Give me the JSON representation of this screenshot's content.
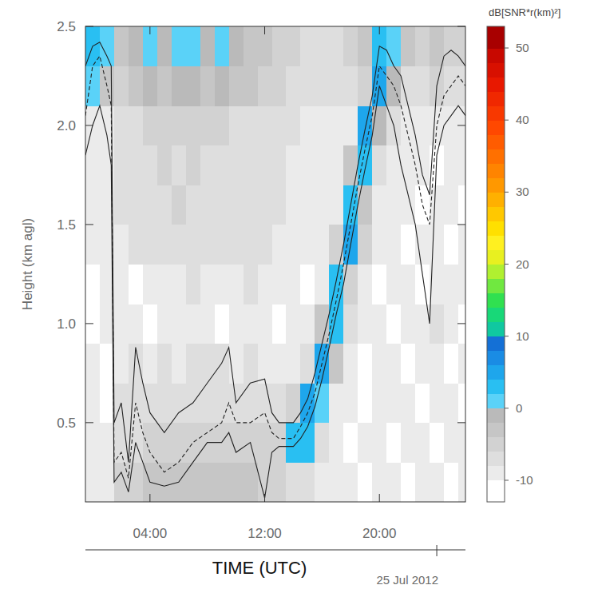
{
  "chart_data": {
    "type": "heatmap",
    "x_label": "TIME (UTC)",
    "y_label": "Height (km agl)",
    "xlim": [
      -0.5,
      26
    ],
    "ylim": [
      0.1,
      2.5
    ],
    "xticks": [
      {
        "value": 4,
        "label": "04:00"
      },
      {
        "value": 12,
        "label": "12:00"
      },
      {
        "value": 20,
        "label": "20:00"
      }
    ],
    "yticks": [
      0.5,
      {
        "value": 1.0,
        "label": "1.0"
      },
      1.5,
      {
        "value": 2.0,
        "label": "2.0"
      },
      2.5
    ],
    "grid": false,
    "annotations": [
      {
        "x": 24,
        "text": "25 Jul 2012"
      }
    ],
    "heatmap": {
      "x_edges": [
        -0.5,
        0.5,
        1.5,
        2.5,
        3.5,
        4.5,
        5.5,
        6.5,
        7.5,
        8.5,
        9.5,
        10.5,
        11.5,
        12.5,
        13.5,
        14.5,
        15.5,
        16.5,
        17.5,
        18.5,
        19.5,
        20.5,
        21.5,
        22.5,
        23.5,
        24.5,
        25.5,
        26
      ],
      "y_edges": [
        0.1,
        0.3,
        0.5,
        0.7,
        0.9,
        1.1,
        1.3,
        1.5,
        1.7,
        1.9,
        2.1,
        2.3,
        2.5
      ],
      "z": [
        [
          -9,
          -9,
          -6,
          -5,
          -4,
          -4,
          -4,
          -3,
          -4,
          -4,
          -4,
          -4,
          -5,
          -5,
          -7,
          -7,
          -9,
          -9,
          -9,
          -10.5,
          -9,
          -9,
          -10.5,
          -9,
          -9,
          -10.5,
          -9
        ],
        [
          -9,
          -9,
          -7,
          -7,
          -6,
          -6,
          -6,
          -5,
          -6,
          -6,
          -6,
          -6,
          -6,
          -6,
          2,
          3,
          -8,
          -9,
          -10.5,
          -9,
          -9,
          -10.5,
          -9,
          -9,
          -10.5,
          -9,
          -9
        ],
        [
          -9,
          -10.5,
          -8,
          -8,
          -7,
          -8,
          -7,
          -7,
          -7,
          -8,
          -7,
          -7,
          -8,
          -8,
          -5,
          4,
          1,
          -9,
          -9,
          -10.5,
          -9,
          -9,
          -9,
          -10.5,
          -9,
          -9,
          -10.5
        ],
        [
          -9,
          -10.5,
          -9,
          -8,
          -9,
          -8,
          -9,
          -8,
          -8,
          -8,
          -9,
          -8,
          -9,
          -9,
          -9,
          -8,
          4,
          -4,
          -9,
          -10.5,
          -9,
          -9,
          -10.5,
          -9,
          -9,
          -10.5,
          -9
        ],
        [
          -10.5,
          -9,
          -9,
          -9,
          -10.5,
          -9,
          -9,
          -9,
          -9,
          -10.5,
          -9,
          -9,
          -9,
          -10.5,
          -9,
          -9,
          -3,
          3,
          -7,
          -9,
          -9,
          -10.5,
          -9,
          -9,
          -8,
          -9,
          -10.5
        ],
        [
          -10.5,
          -9,
          -9,
          -10.5,
          -9,
          -9,
          -9,
          -8,
          -9,
          -9,
          -9,
          -8,
          -9,
          -9,
          -9,
          -10.5,
          -9,
          3,
          -5,
          -9,
          -10.5,
          -9,
          -9,
          -10.5,
          -9,
          -9,
          -9
        ],
        [
          -9,
          -9,
          -9,
          -8,
          -8,
          -7,
          -8,
          -8,
          -7,
          -8,
          -8,
          -8,
          -8,
          -9,
          -9,
          -9,
          -9,
          -5,
          4,
          -6,
          -9,
          -9,
          -10.5,
          -9,
          -9,
          -10.5,
          -9
        ],
        [
          -9,
          -9,
          -8,
          -7,
          -7,
          -7,
          -6,
          -7,
          -7,
          -7,
          -7,
          -8,
          -8,
          -8,
          -9,
          -9,
          -9,
          -9,
          3,
          -4,
          -9,
          -9,
          -9,
          -10.5,
          -9,
          -9,
          -10.5
        ],
        [
          -9,
          -9,
          -8,
          -7,
          -7,
          -6,
          -7,
          -6,
          -7,
          -7,
          -7,
          -7,
          -8,
          -8,
          -9,
          -9,
          -9,
          -9,
          -4,
          3,
          -7,
          -9,
          -9,
          -9,
          -10.5,
          -9,
          -9
        ],
        [
          -9,
          -9,
          -7,
          -7,
          -6,
          -6,
          -5,
          -6,
          -6,
          -6,
          -7,
          -7,
          -8,
          -8,
          -8,
          -9,
          -9,
          -9,
          -9,
          4,
          -2,
          -8,
          -9,
          -9,
          -9,
          -9,
          -9
        ],
        [
          0,
          -3,
          -5,
          -3,
          -2,
          -3,
          -2,
          -1,
          -3,
          -2,
          -3,
          -4,
          -5,
          -6,
          -7,
          -8,
          -8,
          -8,
          -8,
          -5,
          4,
          -1,
          -7,
          -8,
          -6,
          -7,
          -8
        ],
        [
          2,
          1,
          -4,
          -1,
          0.5,
          -1,
          1,
          0.5,
          -1,
          0.5,
          -2,
          -3,
          -4,
          -5,
          -6,
          -7,
          -7,
          -7,
          -6,
          -3,
          3,
          1,
          -4,
          -6,
          -3,
          -5,
          -6
        ]
      ]
    },
    "colorbar": {
      "title": "dB[SNR*r(km)²]",
      "lim": [
        -13,
        53
      ],
      "ticks": [
        -10,
        0,
        10,
        20,
        30,
        40,
        50
      ],
      "levels": [
        -13,
        -10,
        -8,
        -6,
        -4,
        -2,
        0,
        2,
        4,
        6,
        8,
        10,
        12,
        14,
        16,
        18,
        20,
        22,
        24,
        26,
        28,
        30,
        32,
        34,
        36,
        38,
        40,
        42,
        44,
        46,
        48,
        50,
        53
      ],
      "colors": [
        "#ffffff",
        "#ebebeb",
        "#dedede",
        "#d2d2d2",
        "#c6c6c6",
        "#bababa",
        "#5ad2f8",
        "#29bff2",
        "#1ea6ec",
        "#1a8ce4",
        "#1470d6",
        "#10c8a0",
        "#18d878",
        "#30e050",
        "#70e840",
        "#b0f030",
        "#e8f020",
        "#fff020",
        "#ffe000",
        "#ffc800",
        "#ffb000",
        "#ff9800",
        "#ff8400",
        "#ff7000",
        "#ff5c00",
        "#ff4800",
        "#f83800",
        "#f02800",
        "#e81800",
        "#d81000",
        "#c80800",
        "#a80000"
      ]
    },
    "x": [
      -0.5,
      0,
      0.5,
      1,
      1.3,
      1.5,
      2,
      2.5,
      3,
      3.5,
      4,
      5,
      6,
      7,
      8,
      9,
      9.5,
      10,
      11,
      12,
      12.5,
      13,
      14,
      14.5,
      15,
      15.5,
      16,
      16.5,
      17,
      17.5,
      18,
      18.5,
      19,
      19.5,
      20,
      20.5,
      21,
      21.5,
      22,
      22.5,
      23,
      23.5,
      24,
      24.5,
      25,
      25.5,
      26
    ],
    "series": [
      {
        "color": "#222222",
        "line_style": "solid",
        "values": [
          2.3,
          2.4,
          2.42,
          2.35,
          2.3,
          0.5,
          0.6,
          0.3,
          0.88,
          0.7,
          0.55,
          0.45,
          0.55,
          0.6,
          0.7,
          0.8,
          0.88,
          0.6,
          0.7,
          0.72,
          0.55,
          0.5,
          0.5,
          0.55,
          0.62,
          0.75,
          0.9,
          1.05,
          1.22,
          1.4,
          1.6,
          1.8,
          1.98,
          2.15,
          2.4,
          2.38,
          2.3,
          2.25,
          2.1,
          1.95,
          1.75,
          1.65,
          2.2,
          2.35,
          2.38,
          2.35,
          2.3
        ]
      },
      {
        "color": "#222222",
        "line_style": "dashed",
        "values": [
          2.05,
          2.3,
          2.35,
          2.2,
          2.1,
          0.3,
          0.35,
          0.22,
          0.6,
          0.45,
          0.35,
          0.25,
          0.3,
          0.4,
          0.45,
          0.5,
          0.6,
          0.5,
          0.5,
          0.55,
          0.45,
          0.42,
          0.42,
          0.48,
          0.55,
          0.65,
          0.8,
          0.95,
          1.12,
          1.3,
          1.5,
          1.7,
          1.88,
          2.05,
          2.3,
          2.25,
          2.2,
          2.1,
          1.95,
          1.8,
          1.6,
          1.5,
          2.0,
          2.15,
          2.2,
          2.25,
          2.2
        ]
      },
      {
        "color": "#222222",
        "line_style": "solid",
        "values": [
          1.85,
          2.0,
          2.1,
          1.95,
          1.8,
          0.2,
          0.25,
          0.15,
          0.4,
          0.3,
          0.2,
          0.18,
          0.2,
          0.3,
          0.4,
          0.4,
          0.45,
          0.35,
          0.4,
          0.12,
          0.35,
          0.38,
          0.38,
          0.42,
          0.48,
          0.58,
          0.72,
          0.88,
          1.05,
          1.2,
          1.4,
          1.6,
          1.78,
          1.95,
          2.2,
          2.1,
          2.0,
          1.8,
          1.65,
          1.5,
          1.25,
          1.0,
          1.85,
          2.0,
          2.05,
          2.1,
          2.05
        ]
      }
    ]
  }
}
